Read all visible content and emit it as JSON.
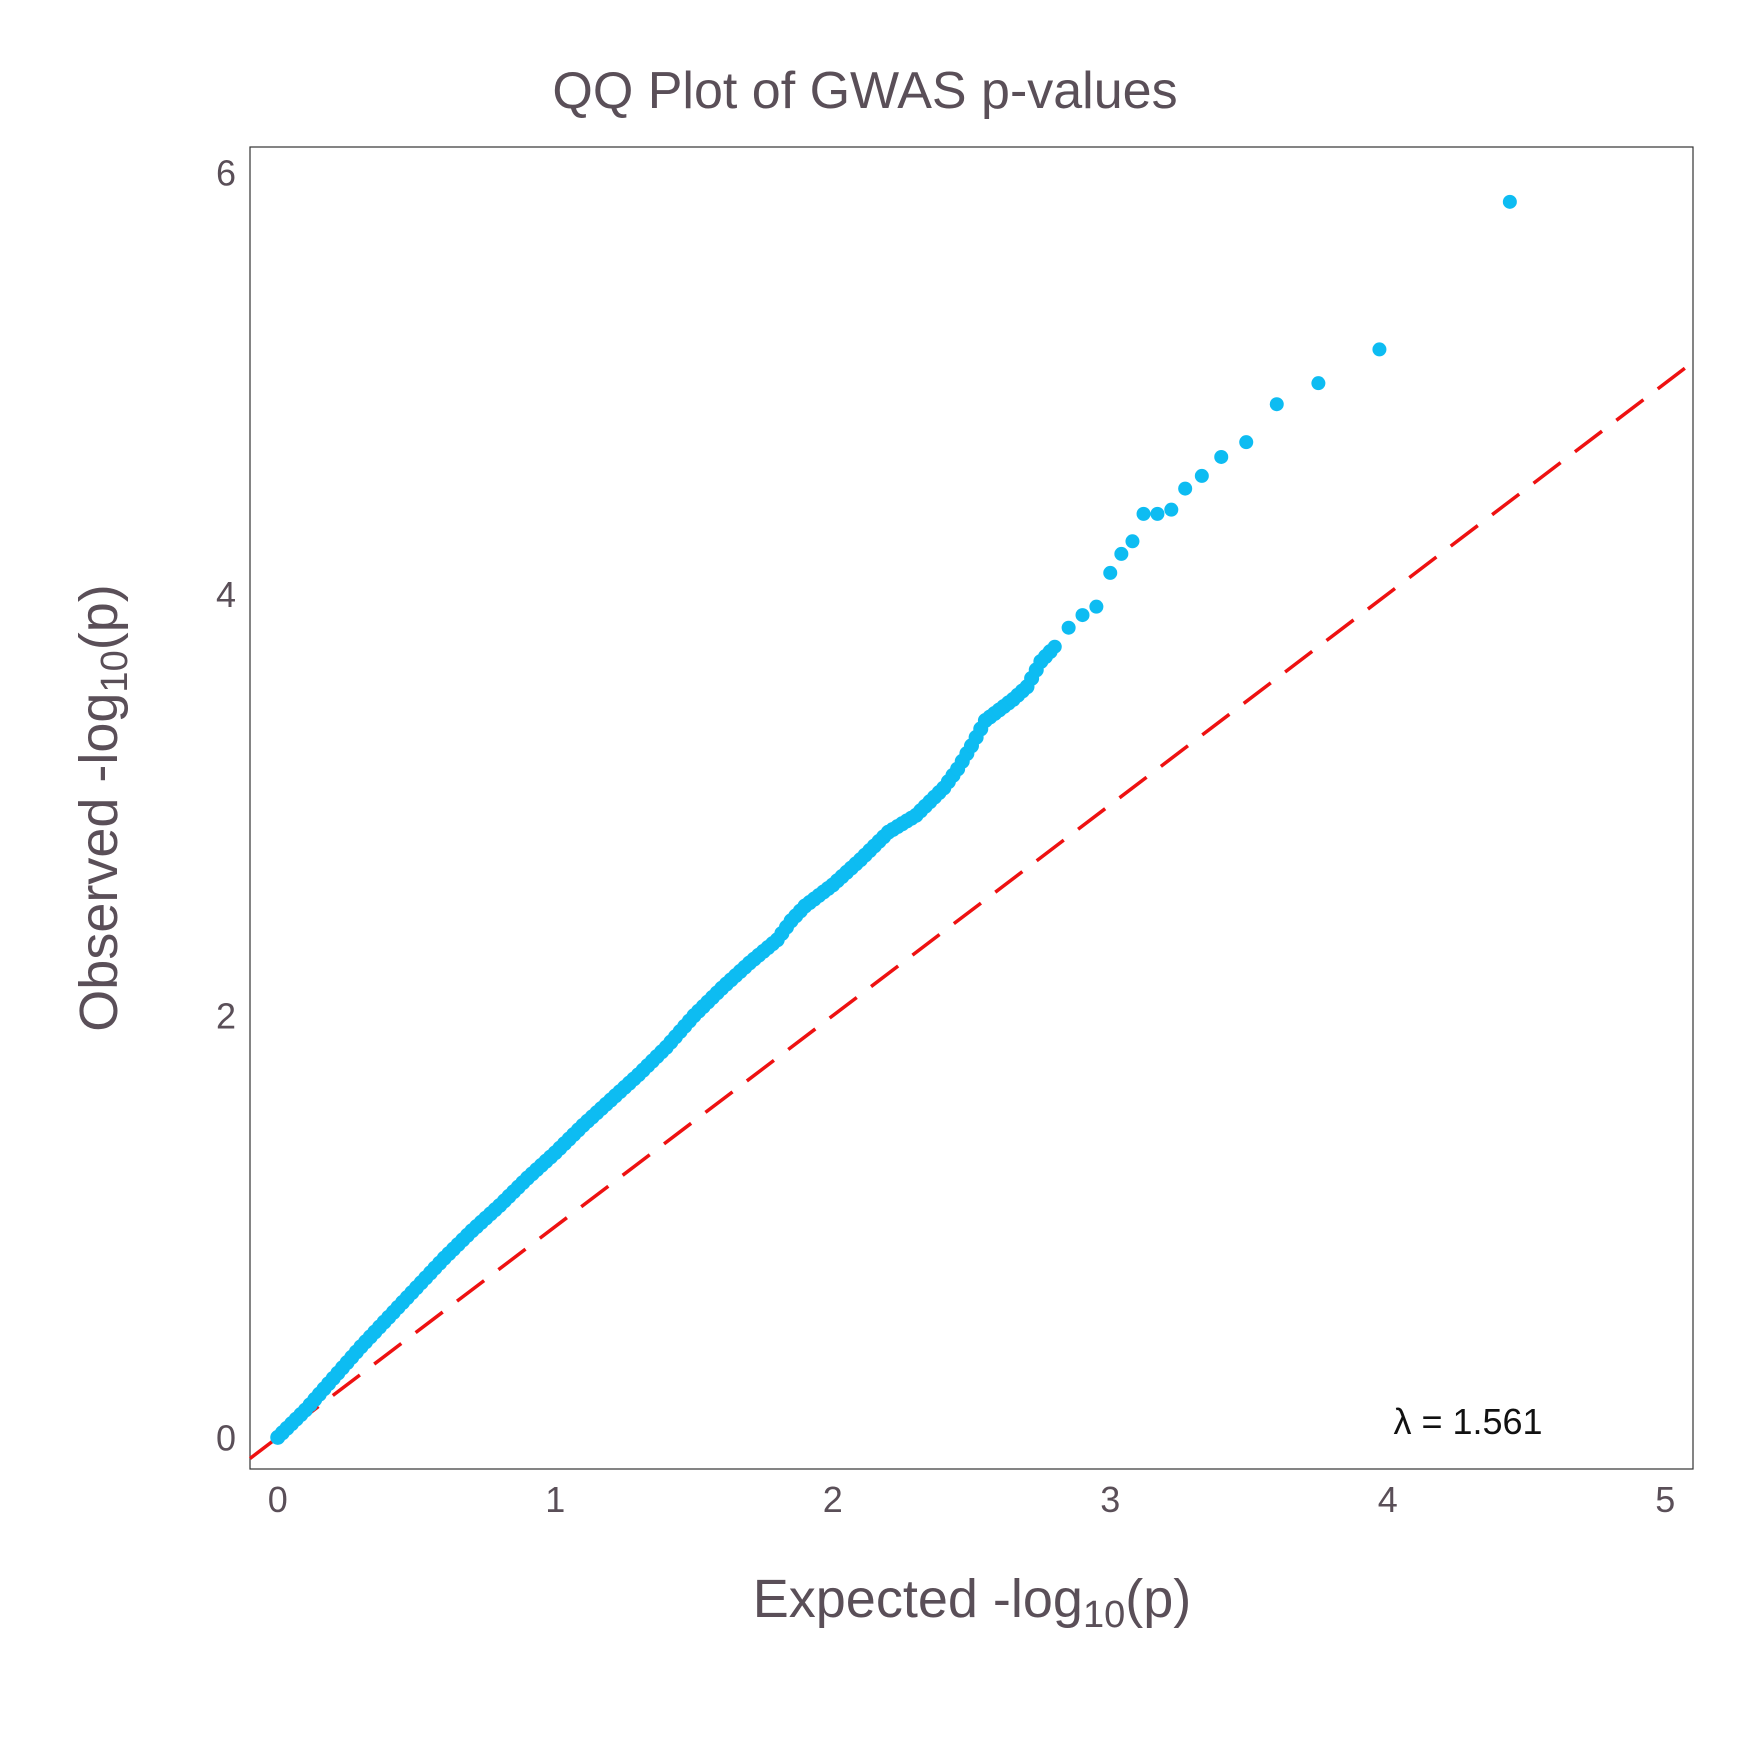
{
  "chart_data": {
    "type": "scatter",
    "title": "QQ Plot of GWAS p-values",
    "xlabel": {
      "prefix": "Expected -log",
      "sub": "10",
      "suffix": "(p)"
    },
    "ylabel": {
      "prefix": "Observed -log",
      "sub": "10",
      "suffix": "(p)"
    },
    "xlim": [
      -0.1,
      5.1
    ],
    "ylim": [
      -0.15,
      6.12
    ],
    "x_ticks": [
      "0",
      "1",
      "2",
      "3",
      "4",
      "5"
    ],
    "y_ticks": [
      "0",
      "2",
      "4",
      "6"
    ],
    "grid": false,
    "annotation": "λ = 1.561",
    "reference_line": {
      "slope": 1,
      "intercept": 0,
      "style": "dashed",
      "color": "#ee1111"
    },
    "point_color": "#0dbcf2",
    "points": {
      "x": [
        0.0,
        0.1,
        0.2,
        0.3,
        0.4,
        0.5,
        0.6,
        0.7,
        0.8,
        0.9,
        1.0,
        1.1,
        1.2,
        1.3,
        1.4,
        1.5,
        1.6,
        1.7,
        1.8,
        1.85,
        1.9,
        2.0,
        2.1,
        2.2,
        2.3,
        2.4,
        2.45,
        2.5,
        2.55,
        2.6,
        2.65,
        2.7,
        2.75,
        2.8,
        2.85,
        2.9,
        2.95,
        3.0,
        3.04,
        3.08,
        3.12,
        3.17,
        3.22,
        3.27,
        3.33,
        3.4,
        3.49,
        3.6,
        3.75,
        3.97,
        4.44
      ],
      "y": [
        0.0,
        0.13,
        0.28,
        0.43,
        0.57,
        0.71,
        0.85,
        0.98,
        1.1,
        1.23,
        1.35,
        1.48,
        1.6,
        1.72,
        1.85,
        2.0,
        2.13,
        2.25,
        2.36,
        2.45,
        2.52,
        2.62,
        2.74,
        2.87,
        2.95,
        3.08,
        3.17,
        3.28,
        3.4,
        3.45,
        3.5,
        3.56,
        3.68,
        3.75,
        3.84,
        3.9,
        3.94,
        4.1,
        4.19,
        4.25,
        4.38,
        4.38,
        4.4,
        4.5,
        4.56,
        4.65,
        4.72,
        4.9,
        5.0,
        5.16,
        5.86
      ]
    }
  }
}
